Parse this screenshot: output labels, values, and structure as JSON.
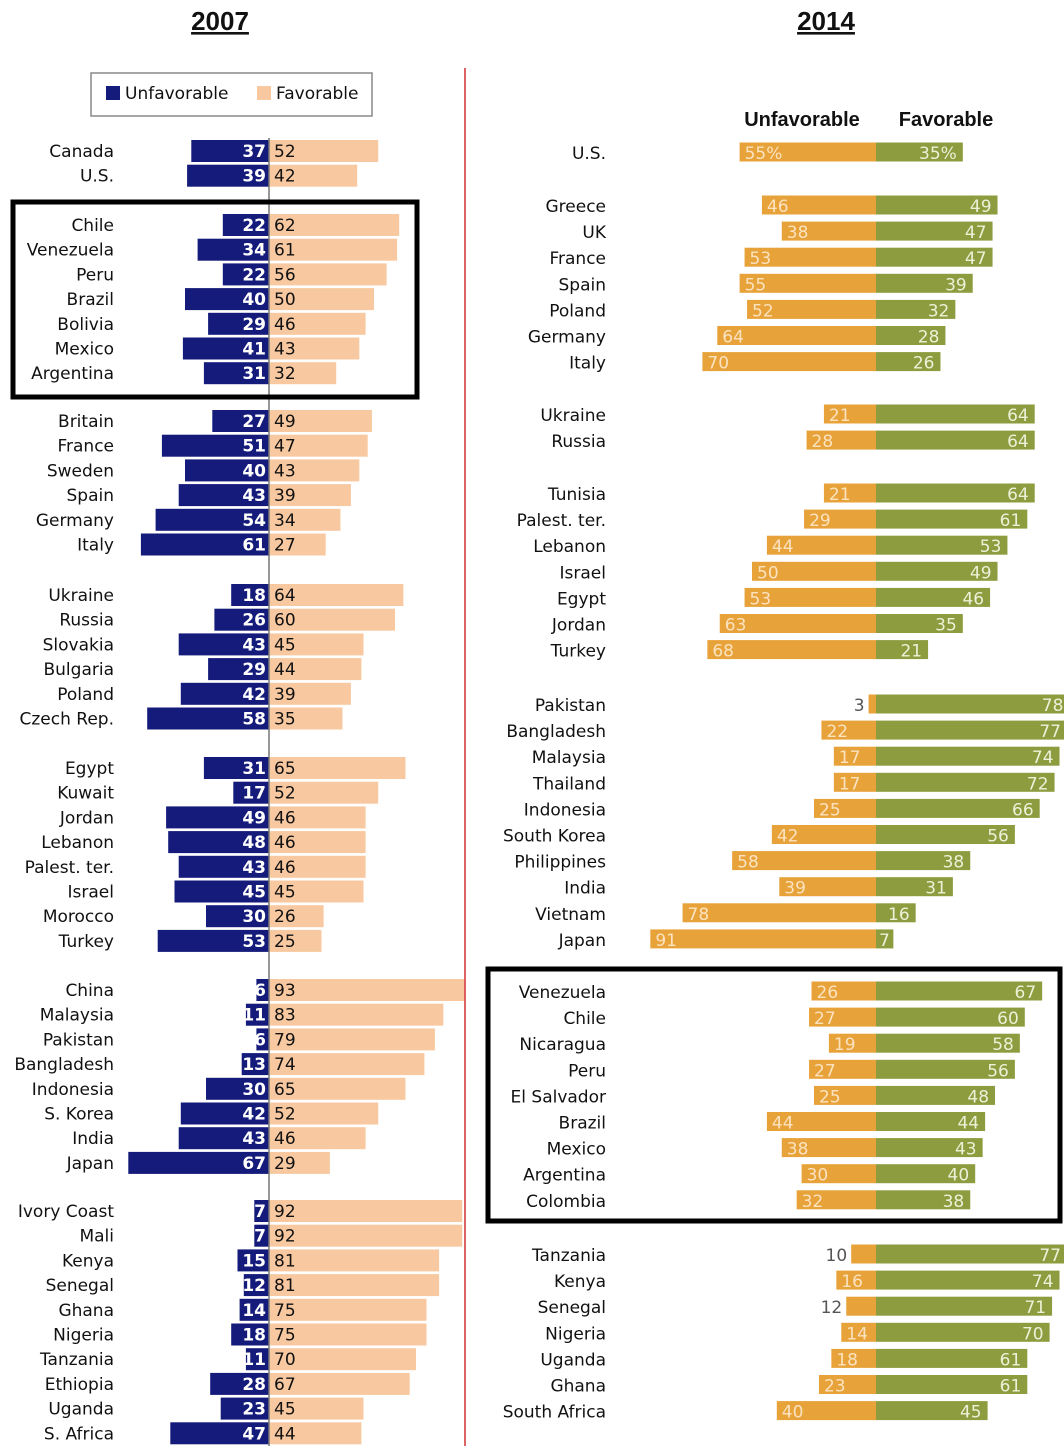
{
  "chart_data": [
    {
      "type": "bar",
      "title": "2007",
      "legend": [
        "Unfavorable",
        "Favorable"
      ],
      "legend_placement": "top",
      "colors": {
        "unfavorable": "#141b7a",
        "favorable": "#f8c9a0"
      },
      "groups": [
        [
          [
            "Canada",
            37,
            52
          ],
          [
            "U.S.",
            39,
            42
          ]
        ],
        [
          [
            "Chile",
            22,
            62
          ],
          [
            "Venezuela",
            34,
            61
          ],
          [
            "Peru",
            22,
            56
          ],
          [
            "Brazil",
            40,
            50
          ],
          [
            "Bolivia",
            29,
            46
          ],
          [
            "Mexico",
            41,
            43
          ],
          [
            "Argentina",
            31,
            32
          ]
        ],
        [
          [
            "Britain",
            27,
            49
          ],
          [
            "France",
            51,
            47
          ],
          [
            "Sweden",
            40,
            43
          ],
          [
            "Spain",
            43,
            39
          ],
          [
            "Germany",
            54,
            34
          ],
          [
            "Italy",
            61,
            27
          ]
        ],
        [
          [
            "Ukraine",
            18,
            64
          ],
          [
            "Russia",
            26,
            60
          ],
          [
            "Slovakia",
            43,
            45
          ],
          [
            "Bulgaria",
            29,
            44
          ],
          [
            "Poland",
            42,
            39
          ],
          [
            "Czech Rep.",
            58,
            35
          ]
        ],
        [
          [
            "Egypt",
            31,
            65
          ],
          [
            "Kuwait",
            17,
            52
          ],
          [
            "Jordan",
            49,
            46
          ],
          [
            "Lebanon",
            48,
            46
          ],
          [
            "Palest. ter.",
            43,
            46
          ],
          [
            "Israel",
            45,
            45
          ],
          [
            "Morocco",
            30,
            26
          ],
          [
            "Turkey",
            53,
            25
          ]
        ],
        [
          [
            "China",
            6,
            93
          ],
          [
            "Malaysia",
            11,
            83
          ],
          [
            "Pakistan",
            6,
            79
          ],
          [
            "Bangladesh",
            13,
            74
          ],
          [
            "Indonesia",
            30,
            65
          ],
          [
            "S. Korea",
            42,
            52
          ],
          [
            "India",
            43,
            46
          ],
          [
            "Japan",
            67,
            29
          ]
        ],
        [
          [
            "Ivory Coast",
            7,
            92
          ],
          [
            "Mali",
            7,
            92
          ],
          [
            "Kenya",
            15,
            81
          ],
          [
            "Senegal",
            12,
            81
          ],
          [
            "Ghana",
            14,
            75
          ],
          [
            "Nigeria",
            18,
            75
          ],
          [
            "Tanzania",
            11,
            70
          ],
          [
            "Ethiopia",
            28,
            67
          ],
          [
            "Uganda",
            23,
            45
          ],
          [
            "S. Africa",
            47,
            44
          ]
        ]
      ],
      "highlighted_group": 1
    },
    {
      "type": "bar",
      "title": "2014",
      "legend": [
        "Unfavorable",
        "Favorable"
      ],
      "legend_placement": "top",
      "colors": {
        "unfavorable": "#e8a23a",
        "favorable": "#8c9c3e"
      },
      "groups": [
        [
          [
            "U.S.",
            "55%",
            "35%"
          ]
        ],
        [
          [
            "Greece",
            46,
            49
          ],
          [
            "UK",
            38,
            47
          ],
          [
            "France",
            53,
            47
          ],
          [
            "Spain",
            55,
            39
          ],
          [
            "Poland",
            52,
            32
          ],
          [
            "Germany",
            64,
            28
          ],
          [
            "Italy",
            70,
            26
          ]
        ],
        [
          [
            "Ukraine",
            21,
            64
          ],
          [
            "Russia",
            28,
            64
          ]
        ],
        [
          [
            "Tunisia",
            21,
            64
          ],
          [
            "Palest. ter.",
            29,
            61
          ],
          [
            "Lebanon",
            44,
            53
          ],
          [
            "Israel",
            50,
            49
          ],
          [
            "Egypt",
            53,
            46
          ],
          [
            "Jordan",
            63,
            35
          ],
          [
            "Turkey",
            68,
            21
          ]
        ],
        [
          [
            "Pakistan",
            3,
            78
          ],
          [
            "Bangladesh",
            22,
            77
          ],
          [
            "Malaysia",
            17,
            74
          ],
          [
            "Thailand",
            17,
            72
          ],
          [
            "Indonesia",
            25,
            66
          ],
          [
            "South Korea",
            42,
            56
          ],
          [
            "Philippines",
            58,
            38
          ],
          [
            "India",
            39,
            31
          ],
          [
            "Vietnam",
            78,
            16
          ],
          [
            "Japan",
            91,
            7
          ]
        ],
        [
          [
            "Venezuela",
            26,
            67
          ],
          [
            "Chile",
            27,
            60
          ],
          [
            "Nicaragua",
            19,
            58
          ],
          [
            "Peru",
            27,
            56
          ],
          [
            "El Salvador",
            25,
            48
          ],
          [
            "Brazil",
            44,
            44
          ],
          [
            "Mexico",
            38,
            43
          ],
          [
            "Argentina",
            30,
            40
          ],
          [
            "Colombia",
            32,
            38
          ]
        ],
        [
          [
            "Tanzania",
            10,
            77
          ],
          [
            "Kenya",
            16,
            74
          ],
          [
            "Senegal",
            12,
            71
          ],
          [
            "Nigeria",
            14,
            70
          ],
          [
            "Uganda",
            18,
            61
          ],
          [
            "Ghana",
            23,
            61
          ],
          [
            "South Africa",
            40,
            45
          ]
        ]
      ],
      "highlighted_group": 5
    }
  ]
}
